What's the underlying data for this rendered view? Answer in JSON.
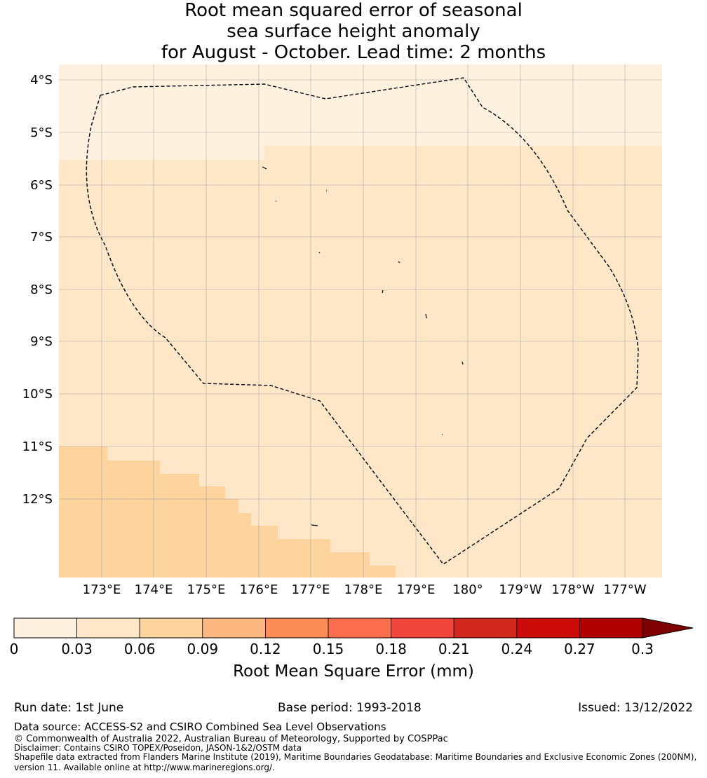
{
  "title": {
    "line1": "Root mean squared error of seasonal",
    "line2": "sea surface height anomaly",
    "line3": "for August - October. Lead time: 2 months"
  },
  "map": {
    "lat_labels": [
      "4°S",
      "5°S",
      "6°S",
      "7°S",
      "8°S",
      "9°S",
      "10°S",
      "11°S",
      "12°S"
    ],
    "lon_labels": [
      "173°E",
      "174°E",
      "175°E",
      "176°E",
      "177°E",
      "178°E",
      "179°E",
      "180°",
      "179°W",
      "178°W",
      "177°W"
    ],
    "fill_colors": {
      "lightest": "#fff1e0",
      "light": "#fee7c9",
      "medium": "#fdd49e"
    }
  },
  "colorbar": {
    "ticks": [
      "0",
      "0.03",
      "0.06",
      "0.09",
      "0.12",
      "0.15",
      "0.18",
      "0.21",
      "0.24",
      "0.27",
      "0.3"
    ],
    "colors": [
      "#fff1e0",
      "#fee7c9",
      "#fdd49e",
      "#fdb882",
      "#fc8d59",
      "#fb6d4c",
      "#f0453a",
      "#d0281f",
      "#cc0a0a",
      "#b00000",
      "#7f0000"
    ],
    "label": "Root Mean Square Error (mm)"
  },
  "footer": {
    "run_date": "Run date: 1st June",
    "base_period": "Base period: 1993-2018",
    "issued": "Issued: 13/12/2022",
    "data_source": "Data source: ACCESS-S2 and CSIRO Combined Sea Level Observations",
    "copyright": "© Commonwealth of Australia 2022, Australian Bureau of Meteorology, Supported by COSPPac",
    "disclaimer": "Disclaimer: Contains CSIRO TOPEX/Poseidon, JASON-1&2/OSTM data",
    "shapefile1": "Shapefile data extracted from Flanders Marine Institute (2019), Maritime Boundaries Geodatabase: Maritime Boundaries and Exclusive Economic Zones (200NM),",
    "shapefile2": "version 11. Available online at http://www.marineregions.org/."
  }
}
